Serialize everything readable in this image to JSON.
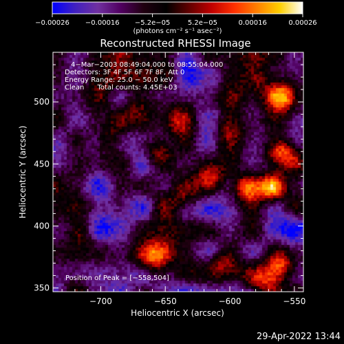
{
  "chart_data": {
    "type": "heatmap",
    "title": "Reconstructed RHESSI Image",
    "xlabel": "Heliocentric X (arcsec)",
    "ylabel": "Heliocentric Y (arcsec)",
    "xlim": [
      -737,
      -543
    ],
    "ylim": [
      347,
      540
    ],
    "x_ticks": [
      -700,
      -650,
      -600,
      -550
    ],
    "x_tick_labels": [
      "−700",
      "−650",
      "−600",
      "−550"
    ],
    "y_ticks": [
      350,
      400,
      450,
      500
    ],
    "y_tick_labels": [
      "350",
      "400",
      "450",
      "500"
    ],
    "colorbar": {
      "range": [
        -0.00026,
        0.00026
      ],
      "tick_labels": [
        "−0.00026",
        "−0.00016",
        "−5.2e−05",
        "5.2e−05",
        "0.00016",
        "0.00026"
      ],
      "unit_label": "(photons cm⁻² s⁻¹ asec⁻²)",
      "colors": [
        "#0000ff",
        "#4020c0",
        "#7030a0",
        "#500060",
        "#200010",
        "#000000",
        "#600000",
        "#c00000",
        "#ff3000",
        "#ff8000",
        "#ffd000",
        "#ffffff"
      ]
    },
    "annotations": [
      "4−Mar−2003 08:49:04.000 to 08:55:04.000",
      "Detectors: 3F 4F 5F 6F 7F 8F, Att 0",
      "Energy Range: 25.0 − 50.0 keV",
      "Clean      Total counts: 4.45E+03",
      "Position of Peak = [−558,504]"
    ],
    "peak": {
      "x": -558,
      "y": 504
    },
    "bright_sources": [
      {
        "x": -558,
        "y": 504,
        "intensity": 1.0,
        "width": 9
      },
      {
        "x": -560,
        "y": 460,
        "intensity": 0.8,
        "width": 8
      },
      {
        "x": -568,
        "y": 430,
        "intensity": 0.7,
        "width": 7
      },
      {
        "x": -588,
        "y": 430,
        "intensity": 0.7,
        "width": 8
      },
      {
        "x": -600,
        "y": 470,
        "intensity": 0.65,
        "width": 9
      },
      {
        "x": -615,
        "y": 440,
        "intensity": 0.6,
        "width": 8
      },
      {
        "x": -643,
        "y": 485,
        "intensity": 0.7,
        "width": 10
      },
      {
        "x": -655,
        "y": 460,
        "intensity": 0.6,
        "width": 8
      },
      {
        "x": -670,
        "y": 500,
        "intensity": 0.55,
        "width": 8
      },
      {
        "x": -690,
        "y": 470,
        "intensity": 0.5,
        "width": 8
      },
      {
        "x": -700,
        "y": 520,
        "intensity": 0.5,
        "width": 9
      },
      {
        "x": -660,
        "y": 375,
        "intensity": 0.75,
        "width": 9
      },
      {
        "x": -635,
        "y": 420,
        "intensity": 0.5,
        "width": 8
      },
      {
        "x": -605,
        "y": 370,
        "intensity": 0.5,
        "width": 9
      },
      {
        "x": -560,
        "y": 370,
        "intensity": 0.6,
        "width": 8
      },
      {
        "x": -575,
        "y": 355,
        "intensity": 0.5,
        "width": 8
      },
      {
        "x": -715,
        "y": 395,
        "intensity": 0.45,
        "width": 7
      },
      {
        "x": -580,
        "y": 520,
        "intensity": 0.55,
        "width": 9
      }
    ],
    "dark_regions": [
      {
        "x": -725,
        "y": 460,
        "intensity": 0.6,
        "width": 15
      },
      {
        "x": -690,
        "y": 410,
        "intensity": 0.55,
        "width": 15
      },
      {
        "x": -610,
        "y": 405,
        "intensity": 0.6,
        "width": 15
      },
      {
        "x": -560,
        "y": 400,
        "intensity": 0.5,
        "width": 12
      },
      {
        "x": -620,
        "y": 525,
        "intensity": 0.5,
        "width": 14
      },
      {
        "x": -640,
        "y": 355,
        "intensity": 0.45,
        "width": 12
      }
    ]
  },
  "timestamp": "29-Apr-2022 13:44"
}
